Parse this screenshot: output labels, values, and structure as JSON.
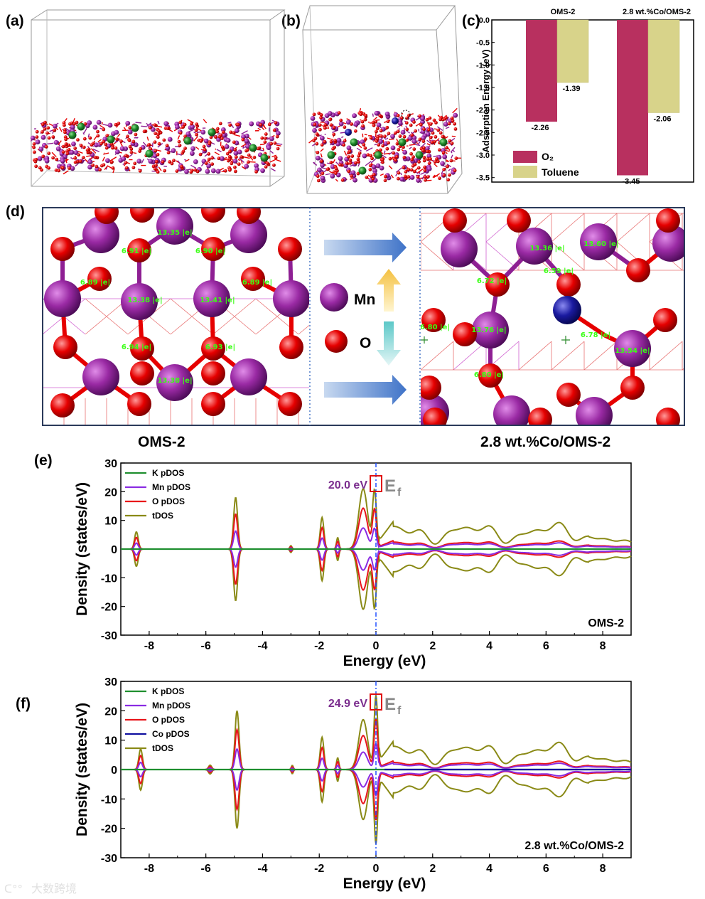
{
  "panel_labels": [
    "(a)",
    "(b)",
    "(c)",
    "(d)",
    "(e)",
    "(f)"
  ],
  "colors": {
    "mn": "#8e1f93",
    "o": "#e60000",
    "co": "#1a1aa0",
    "k": "#1e7a2a",
    "bar_o2": "#b8305f",
    "bar_toluene": "#d8d38a",
    "k_line": "#1f8f2f",
    "mn_line": "#8a2be2",
    "o_line": "#e8141a",
    "co_line": "#1010a0",
    "tdos_line": "#8a8a16",
    "charge_text": "#39ff14",
    "ef_line": "#2050ff"
  },
  "chart_data": [
    {
      "id": "c",
      "type": "bar",
      "categories": [
        "OMS-2",
        "2.8 wt.%Co/OMS-2"
      ],
      "series": [
        {
          "name": "O₂",
          "values": [
            -2.26,
            -3.45
          ]
        },
        {
          "name": "Toluene",
          "values": [
            -1.39,
            -2.06
          ]
        }
      ],
      "value_labels": [
        [
          "-2.26",
          "-3.45"
        ],
        [
          "-1.39",
          "-2.06"
        ]
      ],
      "ylabel": "Adsorption Energy (eV)",
      "ylim": [
        -3.6,
        0.0
      ],
      "yticks": [
        "0.0",
        "-0.5",
        "-1.0",
        "-1.5",
        "-2.0",
        "-2.5",
        "-3.0",
        "-3.5"
      ],
      "legend_position": "bottom-left"
    },
    {
      "id": "e",
      "type": "line",
      "xlabel": "Energy (eV)",
      "ylabel": "Density (states/eV)",
      "xlim": [
        -9,
        9
      ],
      "ylim": [
        -30,
        30
      ],
      "xticks": [
        "-8",
        "-6",
        "-4",
        "-2",
        "0",
        "2",
        "4",
        "6",
        "8"
      ],
      "yticks": [
        "30",
        "20",
        "10",
        "0",
        "-10",
        "-20",
        "-30"
      ],
      "series": [
        {
          "name": "K pDOS"
        },
        {
          "name": "Mn pDOS"
        },
        {
          "name": "O pDOS"
        },
        {
          "name": "tDOS"
        }
      ],
      "annotation": "20.0 eV",
      "fermi_label": "E",
      "fermi_sub": "f",
      "system_label": "OMS-2",
      "legend_position": "top-left"
    },
    {
      "id": "f",
      "type": "line",
      "xlabel": "Energy (eV)",
      "ylabel": "Density (states/eV)",
      "xlim": [
        -9,
        9
      ],
      "ylim": [
        -30,
        30
      ],
      "xticks": [
        "-8",
        "-6",
        "-4",
        "-2",
        "0",
        "2",
        "4",
        "6",
        "8"
      ],
      "yticks": [
        "30",
        "20",
        "10",
        "0",
        "-10",
        "-20",
        "-30"
      ],
      "series": [
        {
          "name": "K pDOS"
        },
        {
          "name": "Mn pDOS"
        },
        {
          "name": "O pDOS"
        },
        {
          "name": "Co pDOS"
        },
        {
          "name": "tDOS"
        }
      ],
      "annotation": "24.9 eV",
      "fermi_label": "E",
      "fermi_sub": "f",
      "system_label": "2.8 wt.%Co/OMS-2",
      "legend_position": "top-left"
    }
  ],
  "panel_d": {
    "legend_mn": "Mn",
    "legend_o": "O",
    "caption_left": "OMS-2",
    "caption_right": "2.8 wt.%Co/OMS-2",
    "charges_left": [
      "13.35 |e|",
      "6.91 |e|",
      "6.90 |e|",
      "6.89 |e|",
      "13.38 |e|",
      "13.41 |e|",
      "6.89 |e|",
      "6.94 |e|",
      "6.93 |e|",
      "13.38 |e|"
    ],
    "charges_right": [
      "13.36 |e|",
      "13.60 |e|",
      "6.59 |e|",
      "6.72 |e|",
      "6.80 |e|",
      "13.76 |e|",
      "6.78 |e|",
      "13.54 |e|",
      "6.80 |e|"
    ]
  },
  "watermark": "大数跨境"
}
